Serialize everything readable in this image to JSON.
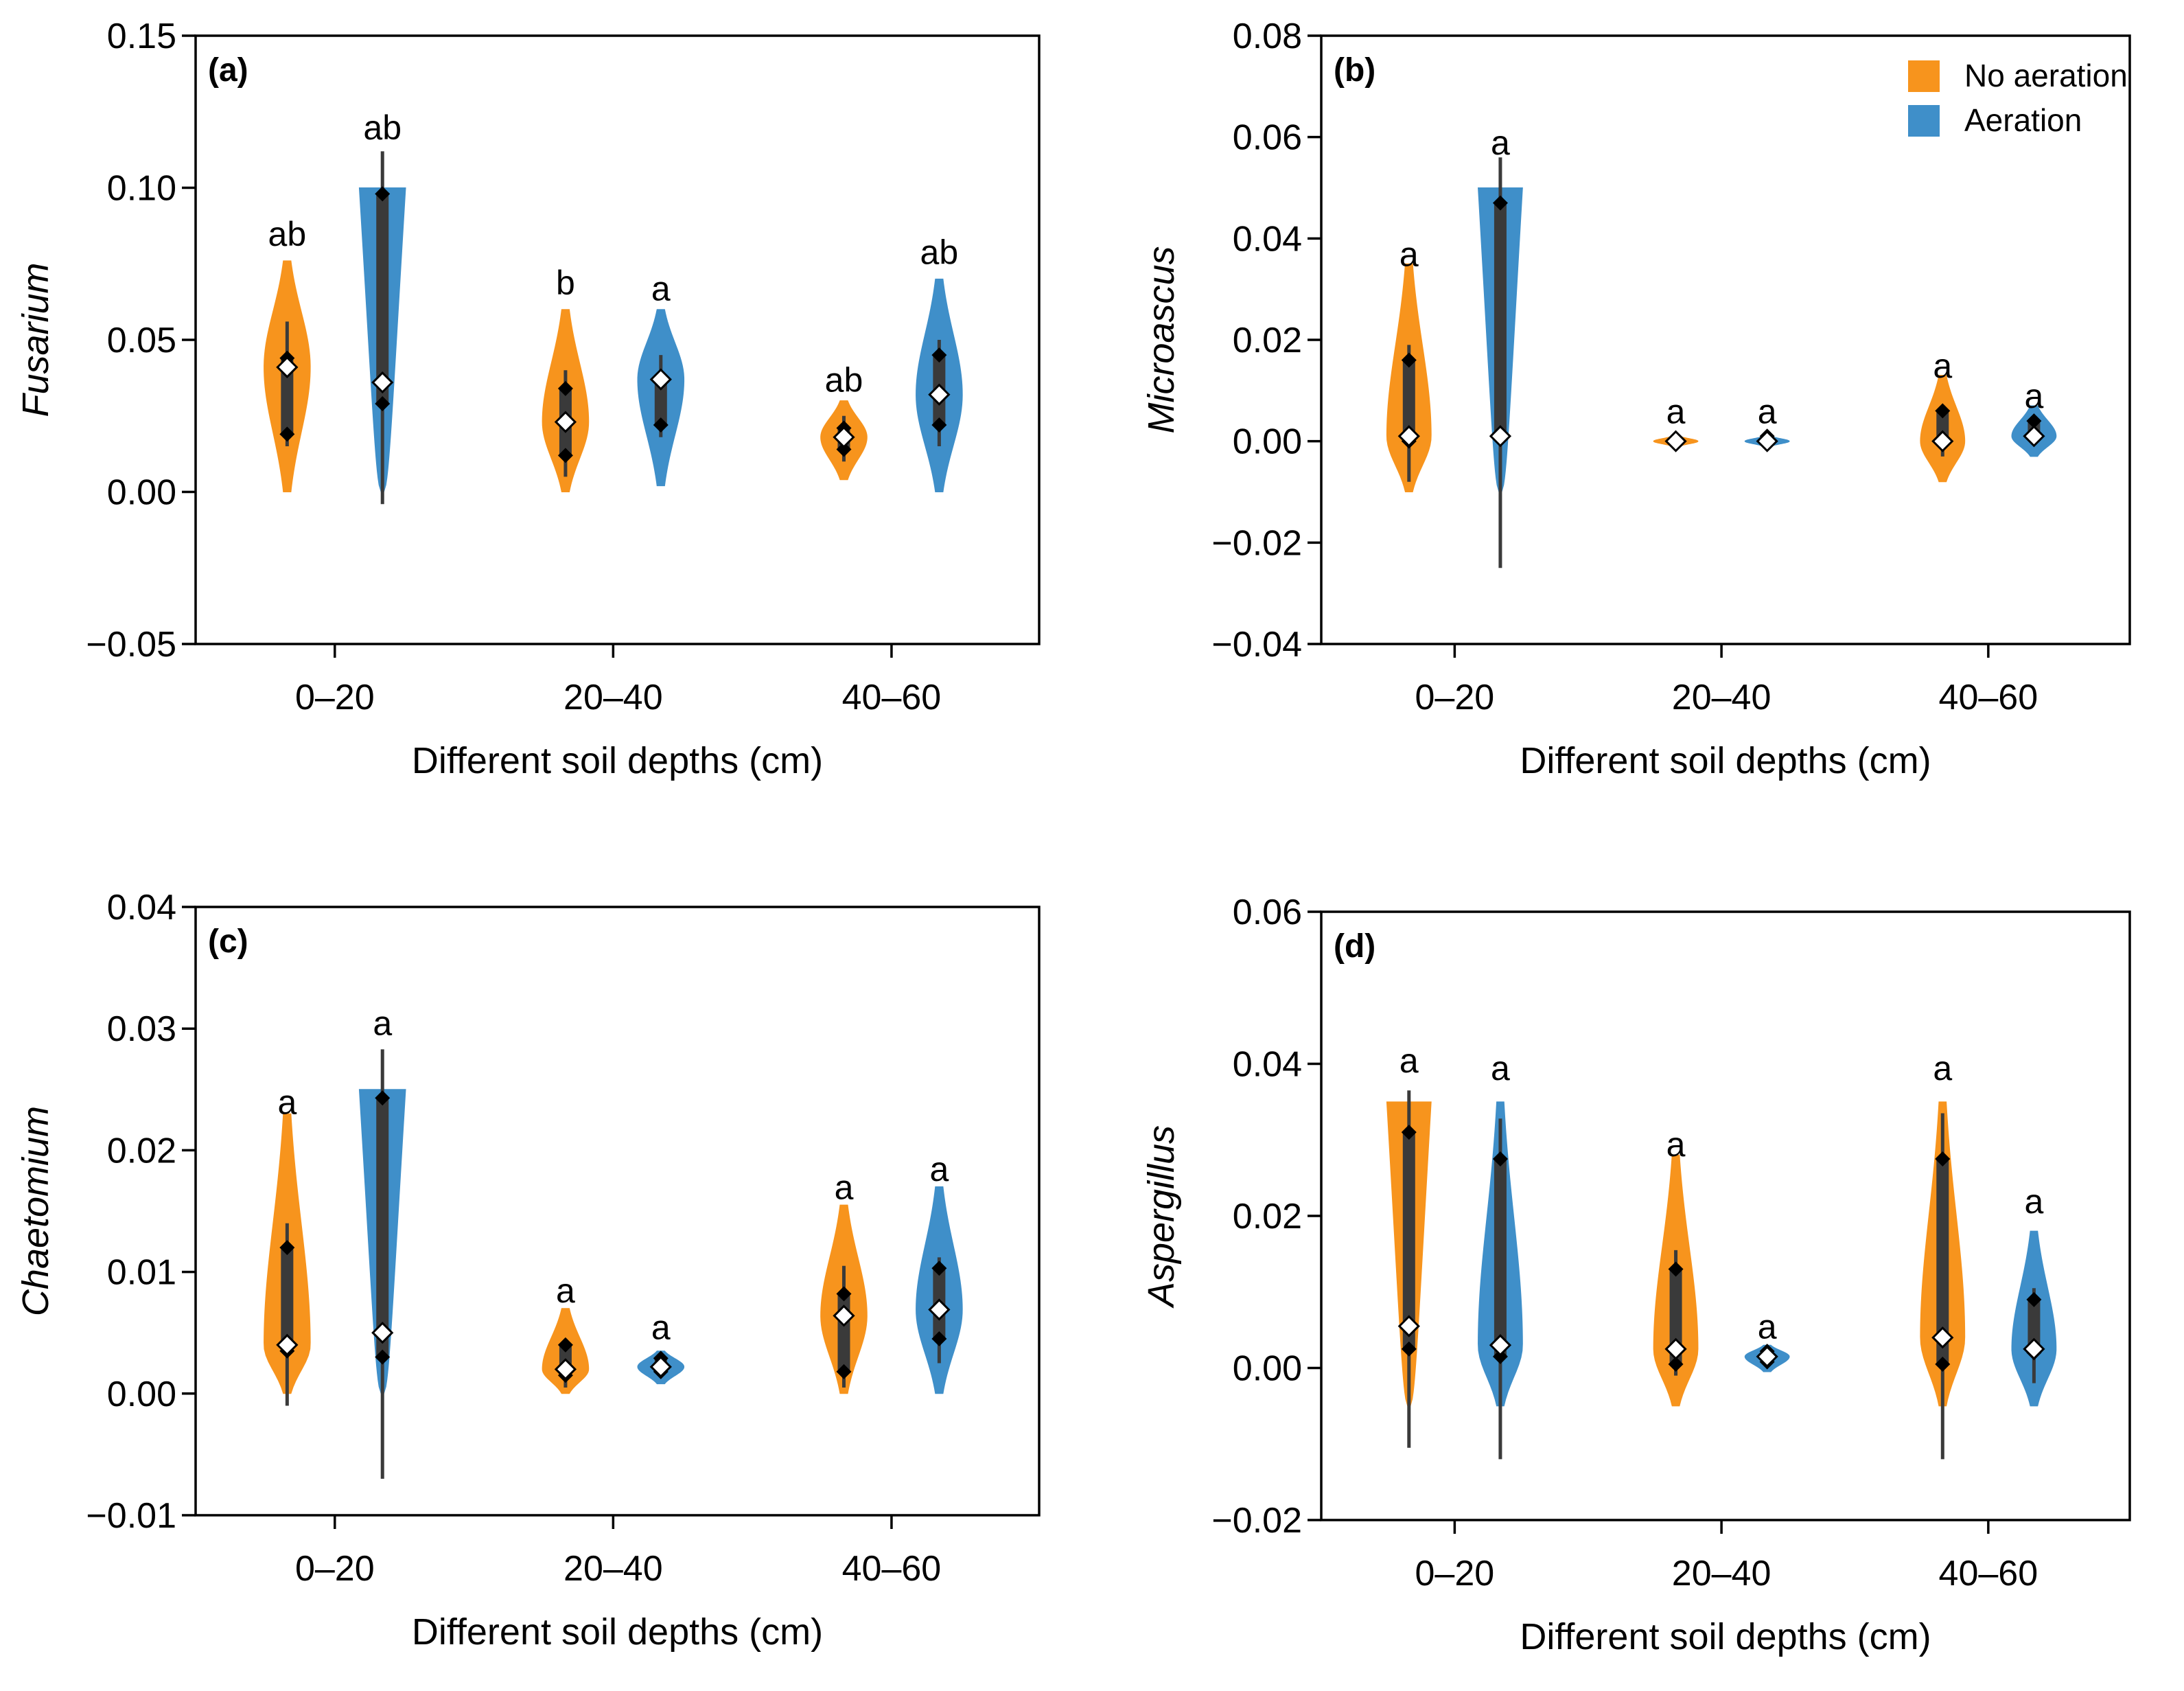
{
  "legend": {
    "items": [
      {
        "label": "No aeration",
        "color": "#F7941D"
      },
      {
        "label": "Aeration",
        "color": "#3F8FC9"
      }
    ]
  },
  "chart_data": [
    {
      "type": "violin",
      "panel": "(a)",
      "ylabel": "Fusarium",
      "xlabel": "Different soil depths (cm)",
      "categories": [
        "0–20",
        "20–40",
        "40–60"
      ],
      "ylim": [
        -0.05,
        0.15
      ],
      "yticks": [
        -0.05,
        0.0,
        0.05,
        0.1,
        0.15
      ],
      "ytick_labels": [
        "−0.05",
        "0.00",
        "0.05",
        "0.10",
        "0.15"
      ],
      "series": [
        {
          "name": "No aeration",
          "color": "#F7941D",
          "groups": [
            {
              "category": "0–20",
              "min": 0.0,
              "max": 0.076,
              "q1": 0.019,
              "q3": 0.044,
              "median": 0.041,
              "whisker": [
                0.015,
                0.056
              ],
              "points": [
                0.019,
                0.044
              ],
              "label": "ab",
              "label_y": 0.085
            },
            {
              "category": "20–40",
              "min": 0.0,
              "max": 0.06,
              "q1": 0.012,
              "q3": 0.034,
              "median": 0.023,
              "whisker": [
                0.005,
                0.04
              ],
              "points": [
                0.012,
                0.034
              ],
              "label": "b",
              "label_y": 0.069
            },
            {
              "category": "40–60",
              "min": 0.004,
              "max": 0.03,
              "q1": 0.014,
              "q3": 0.021,
              "median": 0.018,
              "whisker": [
                0.01,
                0.025
              ],
              "points": [
                0.014,
                0.021
              ],
              "label": "ab",
              "label_y": 0.037
            }
          ]
        },
        {
          "name": "Aeration",
          "color": "#3F8FC9",
          "groups": [
            {
              "category": "0–20",
              "min": 0.0,
              "max": 0.1,
              "q1": 0.029,
              "q3": 0.098,
              "median": 0.036,
              "whisker": [
                -0.004,
                0.112
              ],
              "points": [
                0.029,
                0.098
              ],
              "label": "ab",
              "label_y": 0.12
            },
            {
              "category": "20–40",
              "min": 0.002,
              "max": 0.06,
              "q1": 0.022,
              "q3": 0.038,
              "median": 0.037,
              "whisker": [
                0.018,
                0.045
              ],
              "points": [
                0.022,
                0.038
              ],
              "label": "a",
              "label_y": 0.067
            },
            {
              "category": "40–60",
              "min": 0.0,
              "max": 0.07,
              "q1": 0.022,
              "q3": 0.045,
              "median": 0.032,
              "whisker": [
                0.015,
                0.05
              ],
              "points": [
                0.022,
                0.045
              ],
              "label": "ab",
              "label_y": 0.079
            }
          ]
        }
      ]
    },
    {
      "type": "violin",
      "panel": "(b)",
      "ylabel": "Microascus",
      "xlabel": "Different soil depths (cm)",
      "categories": [
        "0–20",
        "20–40",
        "40–60"
      ],
      "ylim": [
        -0.04,
        0.08
      ],
      "yticks": [
        -0.04,
        -0.02,
        0.0,
        0.02,
        0.04,
        0.06,
        0.08
      ],
      "ytick_labels": [
        "−0.04",
        "−0.02",
        "0.00",
        "0.02",
        "0.04",
        "0.06",
        "0.08"
      ],
      "series": [
        {
          "name": "No aeration",
          "color": "#F7941D",
          "groups": [
            {
              "category": "0–20",
              "min": -0.01,
              "max": 0.035,
              "q1": 0.0,
              "q3": 0.016,
              "median": 0.001,
              "whisker": [
                -0.008,
                0.019
              ],
              "points": [
                0.0,
                0.016
              ],
              "label": "a",
              "label_y": 0.037
            },
            {
              "category": "20–40",
              "min": -0.001,
              "max": 0.001,
              "q1": 0.0,
              "q3": 0.0005,
              "median": 0.0,
              "whisker": [
                -0.0005,
                0.001
              ],
              "points": [
                0.0,
                0.0005
              ],
              "label": "a",
              "label_y": 0.006
            },
            {
              "category": "40–60",
              "min": -0.008,
              "max": 0.013,
              "q1": 0.0,
              "q3": 0.006,
              "median": 0.0,
              "whisker": [
                -0.003,
                0.007
              ],
              "points": [
                0.0,
                0.006
              ],
              "label": "a",
              "label_y": 0.015
            }
          ]
        },
        {
          "name": "Aeration",
          "color": "#3F8FC9",
          "groups": [
            {
              "category": "0–20",
              "min": -0.01,
              "max": 0.05,
              "q1": 0.001,
              "q3": 0.047,
              "median": 0.001,
              "whisker": [
                -0.025,
                0.056
              ],
              "points": [
                0.001,
                0.047
              ],
              "label": "a",
              "label_y": 0.059
            },
            {
              "category": "20–40",
              "min": -0.001,
              "max": 0.001,
              "q1": 0.0,
              "q3": 0.001,
              "median": 0.0,
              "whisker": [
                -0.0005,
                0.001
              ],
              "points": [
                0.0,
                0.001
              ],
              "label": "a",
              "label_y": 0.006
            },
            {
              "category": "40–60",
              "min": -0.003,
              "max": 0.007,
              "q1": 0.001,
              "q3": 0.004,
              "median": 0.001,
              "whisker": [
                0.0,
                0.005
              ],
              "points": [
                0.001,
                0.004
              ],
              "label": "a",
              "label_y": 0.009
            }
          ]
        }
      ]
    },
    {
      "type": "violin",
      "panel": "(c)",
      "ylabel": "Chaetomium",
      "xlabel": "Different soil depths (cm)",
      "categories": [
        "0–20",
        "20–40",
        "40–60"
      ],
      "ylim": [
        -0.01,
        0.04
      ],
      "yticks": [
        -0.01,
        0.0,
        0.01,
        0.02,
        0.03,
        0.04
      ],
      "ytick_labels": [
        "−0.01",
        "0.00",
        "0.01",
        "0.02",
        "0.03",
        "0.04"
      ],
      "series": [
        {
          "name": "No aeration",
          "color": "#F7941D",
          "groups": [
            {
              "category": "0–20",
              "min": 0.0,
              "max": 0.023,
              "q1": 0.0035,
              "q3": 0.012,
              "median": 0.004,
              "whisker": [
                -0.001,
                0.014
              ],
              "points": [
                0.0035,
                0.012
              ],
              "label": "a",
              "label_y": 0.024
            },
            {
              "category": "20–40",
              "min": 0.0,
              "max": 0.007,
              "q1": 0.0015,
              "q3": 0.004,
              "median": 0.002,
              "whisker": [
                0.0005,
                0.0045
              ],
              "points": [
                0.0015,
                0.004
              ],
              "label": "a",
              "label_y": 0.0085
            },
            {
              "category": "40–60",
              "min": 0.0,
              "max": 0.0155,
              "q1": 0.0018,
              "q3": 0.0082,
              "median": 0.0064,
              "whisker": [
                0.0005,
                0.0105
              ],
              "points": [
                0.0018,
                0.0082
              ],
              "label": "a",
              "label_y": 0.017
            }
          ]
        },
        {
          "name": "Aeration",
          "color": "#3F8FC9",
          "groups": [
            {
              "category": "0–20",
              "min": 0.0,
              "max": 0.025,
              "q1": 0.003,
              "q3": 0.0243,
              "median": 0.005,
              "whisker": [
                -0.007,
                0.0283
              ],
              "points": [
                0.003,
                0.0243
              ],
              "label": "a",
              "label_y": 0.0305
            },
            {
              "category": "20–40",
              "min": 0.0008,
              "max": 0.0035,
              "q1": 0.0018,
              "q3": 0.0029,
              "median": 0.0022,
              "whisker": [
                0.0015,
                0.0031
              ],
              "points": [
                0.0018,
                0.0029
              ],
              "label": "a",
              "label_y": 0.0055
            },
            {
              "category": "40–60",
              "min": 0.0,
              "max": 0.017,
              "q1": 0.0045,
              "q3": 0.0103,
              "median": 0.0069,
              "whisker": [
                0.0025,
                0.0112
              ],
              "points": [
                0.0045,
                0.0103
              ],
              "label": "a",
              "label_y": 0.0185
            }
          ]
        }
      ]
    },
    {
      "type": "violin",
      "panel": "(d)",
      "ylabel": "Aspergillus",
      "xlabel": "Different soil depths (cm)",
      "categories": [
        "0–20",
        "20–40",
        "40–60"
      ],
      "ylim": [
        -0.02,
        0.06
      ],
      "yticks": [
        -0.02,
        0.0,
        0.02,
        0.04,
        0.06
      ],
      "ytick_labels": [
        "−0.02",
        "0.00",
        "0.02",
        "0.04",
        "0.06"
      ],
      "series": [
        {
          "name": "No aeration",
          "color": "#F7941D",
          "groups": [
            {
              "category": "0–20",
              "min": -0.005,
              "max": 0.035,
              "q1": 0.0025,
              "q3": 0.031,
              "median": 0.0055,
              "whisker": [
                -0.0105,
                0.0365
              ],
              "points": [
                0.0025,
                0.031
              ],
              "label": "a",
              "label_y": 0.0405
            },
            {
              "category": "20–40",
              "min": -0.005,
              "max": 0.028,
              "q1": 0.0005,
              "q3": 0.013,
              "median": 0.0025,
              "whisker": [
                -0.001,
                0.0155
              ],
              "points": [
                0.0005,
                0.013
              ],
              "label": "a",
              "label_y": 0.0295
            },
            {
              "category": "40–60",
              "min": -0.005,
              "max": 0.035,
              "q1": 0.0005,
              "q3": 0.0275,
              "median": 0.004,
              "whisker": [
                -0.012,
                0.0335
              ],
              "points": [
                0.0005,
                0.0275
              ],
              "label": "a",
              "label_y": 0.0395
            }
          ]
        },
        {
          "name": "Aeration",
          "color": "#3F8FC9",
          "groups": [
            {
              "category": "0–20",
              "min": -0.005,
              "max": 0.035,
              "q1": 0.0015,
              "q3": 0.0275,
              "median": 0.003,
              "whisker": [
                -0.012,
                0.0328
              ],
              "points": [
                0.0015,
                0.0275
              ],
              "label": "a",
              "label_y": 0.0395
            },
            {
              "category": "20–40",
              "min": -0.0005,
              "max": 0.003,
              "q1": 0.0008,
              "q3": 0.0022,
              "median": 0.0015,
              "whisker": [
                0.0005,
                0.0025
              ],
              "points": [
                0.0008,
                0.0022
              ],
              "label": "a",
              "label_y": 0.0055
            },
            {
              "category": "40–60",
              "min": -0.005,
              "max": 0.018,
              "q1": 0.002,
              "q3": 0.009,
              "median": 0.0025,
              "whisker": [
                -0.002,
                0.0105
              ],
              "points": [
                0.002,
                0.009
              ],
              "label": "a",
              "label_y": 0.022
            }
          ]
        }
      ]
    }
  ]
}
